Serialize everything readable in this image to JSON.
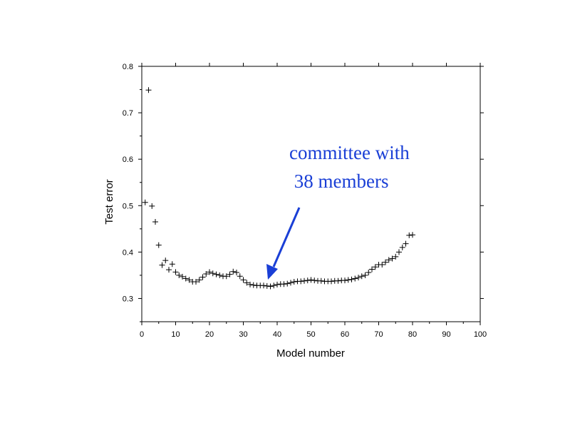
{
  "chart_data": {
    "type": "scatter",
    "title": "",
    "xlabel": "Model number",
    "ylabel": "Test error",
    "xlim": [
      0,
      100
    ],
    "ylim": [
      0.25,
      0.8
    ],
    "xticks": [
      0,
      10,
      20,
      30,
      40,
      50,
      60,
      70,
      80,
      90,
      100
    ],
    "xtick_labels": [
      "0",
      "10",
      "20",
      "30",
      "40",
      "50",
      "60",
      "70",
      "80",
      "90",
      "100"
    ],
    "yticks": [
      0.3,
      0.4,
      0.5,
      0.6,
      0.7,
      0.8
    ],
    "ytick_labels": [
      "0.3",
      "0.4",
      "0.5",
      "0.6",
      "0.7",
      "0.8"
    ],
    "grid": false,
    "marker": "plus",
    "marker_color": "#000000",
    "series": [
      {
        "x": [
          1,
          2,
          3,
          4,
          5,
          6,
          7,
          8,
          9,
          10,
          11,
          12,
          13,
          14,
          15,
          16,
          17,
          18,
          19,
          20,
          21,
          22,
          23,
          24,
          25,
          26,
          27,
          28,
          29,
          30,
          31,
          32,
          33,
          34,
          35,
          36,
          37,
          38,
          39,
          40,
          41,
          42,
          43,
          44,
          45,
          46,
          47,
          48,
          49,
          50,
          51,
          52,
          53,
          54,
          55,
          56,
          57,
          58,
          59,
          60,
          61,
          62,
          63,
          64,
          65,
          66,
          67,
          68,
          69,
          70,
          71,
          72,
          73,
          74,
          75,
          76,
          77,
          78,
          79,
          80
        ],
        "y": [
          0.507,
          0.749,
          0.499,
          0.465,
          0.415,
          0.372,
          0.382,
          0.362,
          0.374,
          0.357,
          0.35,
          0.347,
          0.343,
          0.34,
          0.336,
          0.336,
          0.34,
          0.346,
          0.353,
          0.357,
          0.354,
          0.352,
          0.35,
          0.348,
          0.348,
          0.352,
          0.358,
          0.356,
          0.348,
          0.34,
          0.334,
          0.33,
          0.329,
          0.328,
          0.328,
          0.328,
          0.327,
          0.326,
          0.328,
          0.33,
          0.331,
          0.331,
          0.332,
          0.334,
          0.336,
          0.337,
          0.337,
          0.338,
          0.339,
          0.34,
          0.339,
          0.338,
          0.338,
          0.337,
          0.337,
          0.337,
          0.338,
          0.338,
          0.339,
          0.339,
          0.34,
          0.341,
          0.343,
          0.345,
          0.348,
          0.35,
          0.356,
          0.363,
          0.368,
          0.373,
          0.373,
          0.378,
          0.383,
          0.386,
          0.39,
          0.4,
          0.41,
          0.418,
          0.436,
          0.437
        ]
      }
    ],
    "annotations": [
      {
        "text_lines": [
          "committee with",
          " 38 members"
        ],
        "color": "#1a3fd6",
        "points_to_x": 38,
        "points_to_y": 0.325
      }
    ]
  }
}
